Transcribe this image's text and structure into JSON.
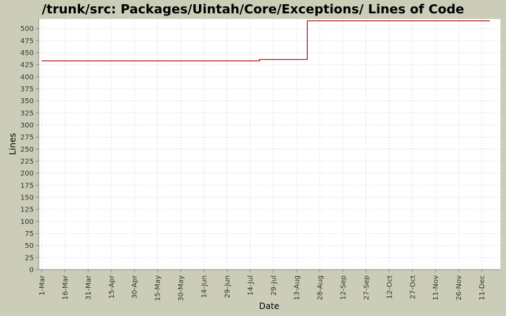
{
  "chart_data": {
    "type": "line",
    "title": "/trunk/src: Packages/Uintah/Core/Exceptions/ Lines of Code",
    "xlabel": "Date",
    "ylabel": "Lines",
    "ylim": [
      0,
      520
    ],
    "y_ticks": [
      0,
      25,
      50,
      75,
      100,
      125,
      150,
      175,
      200,
      225,
      250,
      275,
      300,
      325,
      350,
      375,
      400,
      425,
      450,
      475,
      500
    ],
    "x_tick_labels": [
      "1-Mar",
      "16-Mar",
      "31-Mar",
      "15-Apr",
      "30-Apr",
      "15-May",
      "30-May",
      "14-Jun",
      "29-Jun",
      "14-Jul",
      "29-Jul",
      "13-Aug",
      "28-Aug",
      "12-Sep",
      "27-Sep",
      "12-Oct",
      "27-Oct",
      "11-Nov",
      "26-Nov",
      "11-Dec"
    ],
    "x_tick_days": [
      0,
      15,
      30,
      45,
      60,
      75,
      90,
      105,
      120,
      135,
      150,
      165,
      180,
      195,
      210,
      225,
      240,
      255,
      270,
      285
    ],
    "xlim_days": [
      -2,
      297
    ],
    "grid": true,
    "line_color": "#b00000",
    "series": [
      {
        "points": [
          {
            "day": 0,
            "value": 433
          },
          {
            "day": 141,
            "value": 433
          },
          {
            "day": 141,
            "value": 436
          },
          {
            "day": 172,
            "value": 436
          },
          {
            "day": 172,
            "value": 516
          },
          {
            "day": 290,
            "value": 516
          },
          {
            "day": 290,
            "value": 515
          }
        ]
      }
    ]
  }
}
